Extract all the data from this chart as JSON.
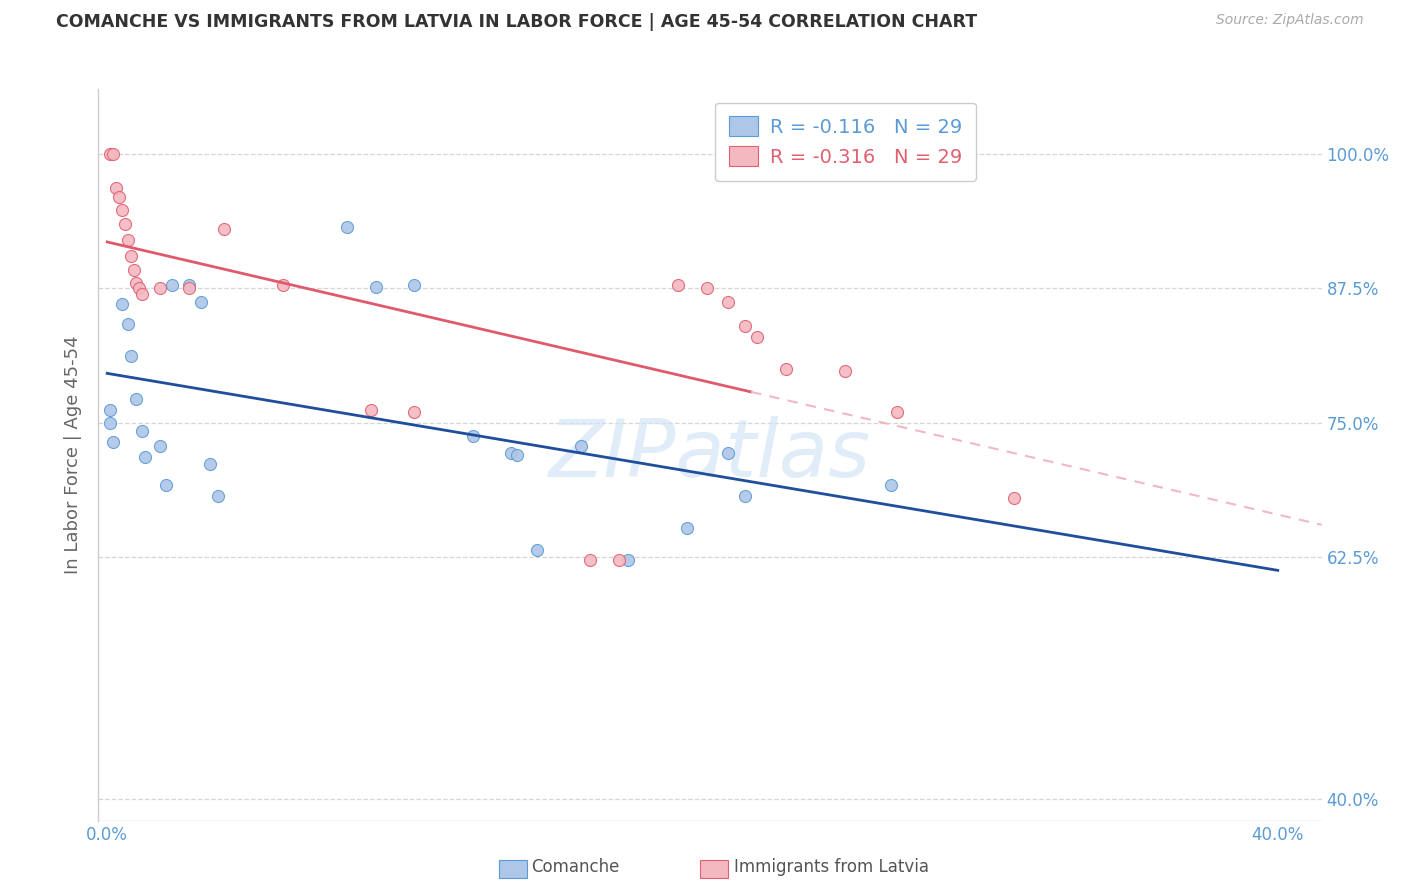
{
  "title": "COMANCHE VS IMMIGRANTS FROM LATVIA IN LABOR FORCE | AGE 45-54 CORRELATION CHART",
  "source": "Source: ZipAtlas.com",
  "ylabel": "In Labor Force | Age 45-54",
  "xlim": [
    -0.003,
    0.415
  ],
  "ylim": [
    0.38,
    1.06
  ],
  "xtick_positions": [
    0.0,
    0.05,
    0.1,
    0.15,
    0.2,
    0.25,
    0.3,
    0.35,
    0.4
  ],
  "xtick_labels": [
    "0.0%",
    "",
    "",
    "",
    "",
    "",
    "",
    "",
    "40.0%"
  ],
  "ytick_positions": [
    0.4,
    0.625,
    0.75,
    0.875,
    1.0
  ],
  "ytick_labels": [
    "40.0%",
    "62.5%",
    "75.0%",
    "87.5%",
    "100.0%"
  ],
  "grid_color": "#cccccc",
  "bg_color": "#ffffff",
  "blue_fill": "#aec6e8",
  "blue_edge": "#5b9bd5",
  "pink_fill": "#f4b8c1",
  "pink_edge": "#e06070",
  "trend_blue_color": "#1f4e9c",
  "trend_pink_color": "#e05a6e",
  "trend_pink_dash": "#f0b8c4",
  "watermark_color": "#d0e4f5",
  "tick_label_color": "#5b9bd5",
  "comanche_x": [
    0.001,
    0.001,
    0.002,
    0.005,
    0.007,
    0.008,
    0.01,
    0.012,
    0.013,
    0.018,
    0.02,
    0.022,
    0.028,
    0.032,
    0.035,
    0.038,
    0.082,
    0.092,
    0.105,
    0.125,
    0.138,
    0.14,
    0.147,
    0.162,
    0.178,
    0.198,
    0.212,
    0.218,
    0.268
  ],
  "comanche_y": [
    0.762,
    0.75,
    0.732,
    0.86,
    0.842,
    0.812,
    0.772,
    0.742,
    0.718,
    0.728,
    0.692,
    0.878,
    0.878,
    0.862,
    0.712,
    0.682,
    0.932,
    0.876,
    0.878,
    0.738,
    0.722,
    0.72,
    0.632,
    0.728,
    0.622,
    0.652,
    0.722,
    0.682,
    0.692
  ],
  "latvia_x": [
    0.001,
    0.002,
    0.003,
    0.004,
    0.005,
    0.006,
    0.007,
    0.008,
    0.009,
    0.01,
    0.011,
    0.012,
    0.018,
    0.028,
    0.04,
    0.06,
    0.09,
    0.105,
    0.165,
    0.175,
    0.195,
    0.205,
    0.212,
    0.218,
    0.222,
    0.232,
    0.252,
    0.27,
    0.31
  ],
  "latvia_y": [
    1.0,
    1.0,
    0.968,
    0.96,
    0.948,
    0.935,
    0.92,
    0.905,
    0.892,
    0.88,
    0.875,
    0.87,
    0.875,
    0.875,
    0.93,
    0.878,
    0.762,
    0.76,
    0.622,
    0.622,
    0.878,
    0.875,
    0.862,
    0.84,
    0.83,
    0.8,
    0.798,
    0.76,
    0.68
  ],
  "r_blue": "-0.116",
  "n_blue": "29",
  "r_pink": "-0.316",
  "n_pink": "29",
  "marker_size": 75,
  "legend_label_blue": "R = -0.116   N = 29",
  "legend_label_pink": "R = -0.316   N = 29",
  "bottom_legend_blue": "Comanche",
  "bottom_legend_pink": "Immigrants from Latvia"
}
